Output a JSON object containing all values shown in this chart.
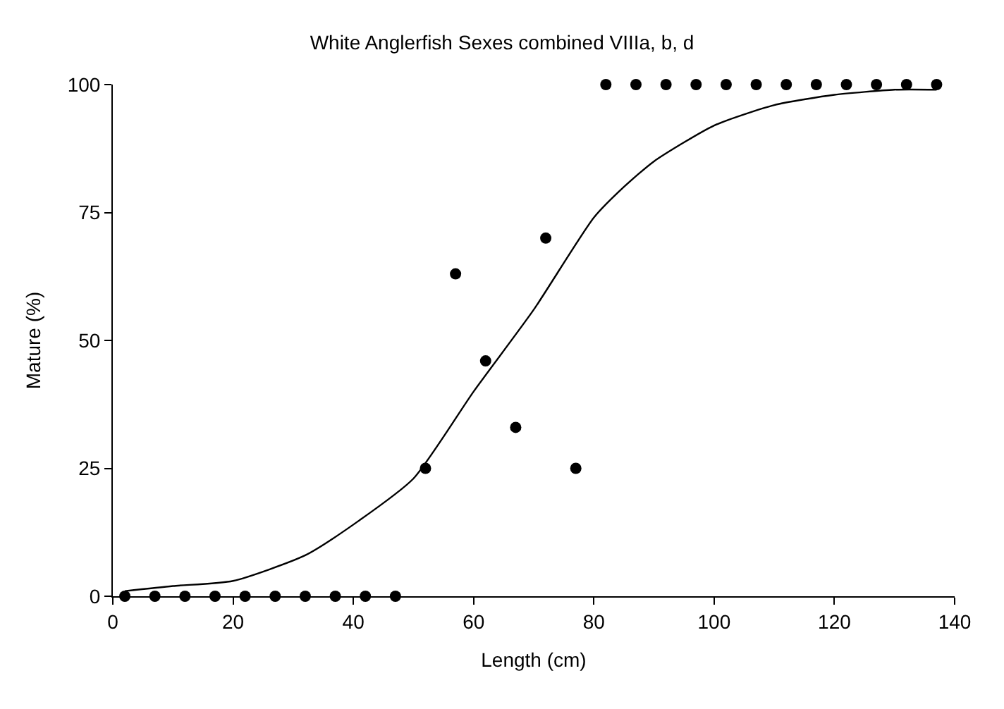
{
  "chart_data": {
    "type": "scatter",
    "title": "White Anglerfish Sexes combined VIIIa, b, d",
    "xlabel": "Length (cm)",
    "ylabel": "Mature (%)",
    "series": [
      {
        "color": "#000000",
        "marker": "circle",
        "x": [
          2,
          7,
          12,
          17,
          22,
          27,
          32,
          37,
          42,
          47,
          52,
          57,
          62,
          67,
          72,
          77,
          82,
          87,
          92,
          97,
          102,
          107,
          112,
          117,
          122,
          127,
          132,
          137
        ],
        "values": [
          0,
          0,
          0,
          0,
          0,
          0,
          0,
          0,
          0,
          0,
          25,
          63,
          46,
          33,
          70,
          25,
          100,
          100,
          100,
          100,
          100,
          100,
          100,
          100,
          100,
          100,
          100,
          100
        ]
      },
      {
        "type": "line",
        "color": "#000000",
        "marker": "none",
        "x": [
          2,
          10,
          20,
          32,
          40,
          50,
          60,
          70,
          80,
          85,
          90,
          100,
          110,
          120,
          130,
          137
        ],
        "values": [
          1,
          2,
          3,
          8,
          14,
          23,
          40,
          56,
          74,
          80,
          85,
          92,
          96,
          98,
          99,
          99
        ]
      }
    ],
    "xlim": [
      0,
      140
    ],
    "xticks": [
      0,
      20,
      40,
      60,
      80,
      100,
      120,
      140
    ],
    "ylim": [
      0,
      100
    ],
    "yticks": [
      0,
      25,
      50,
      75,
      100
    ]
  }
}
